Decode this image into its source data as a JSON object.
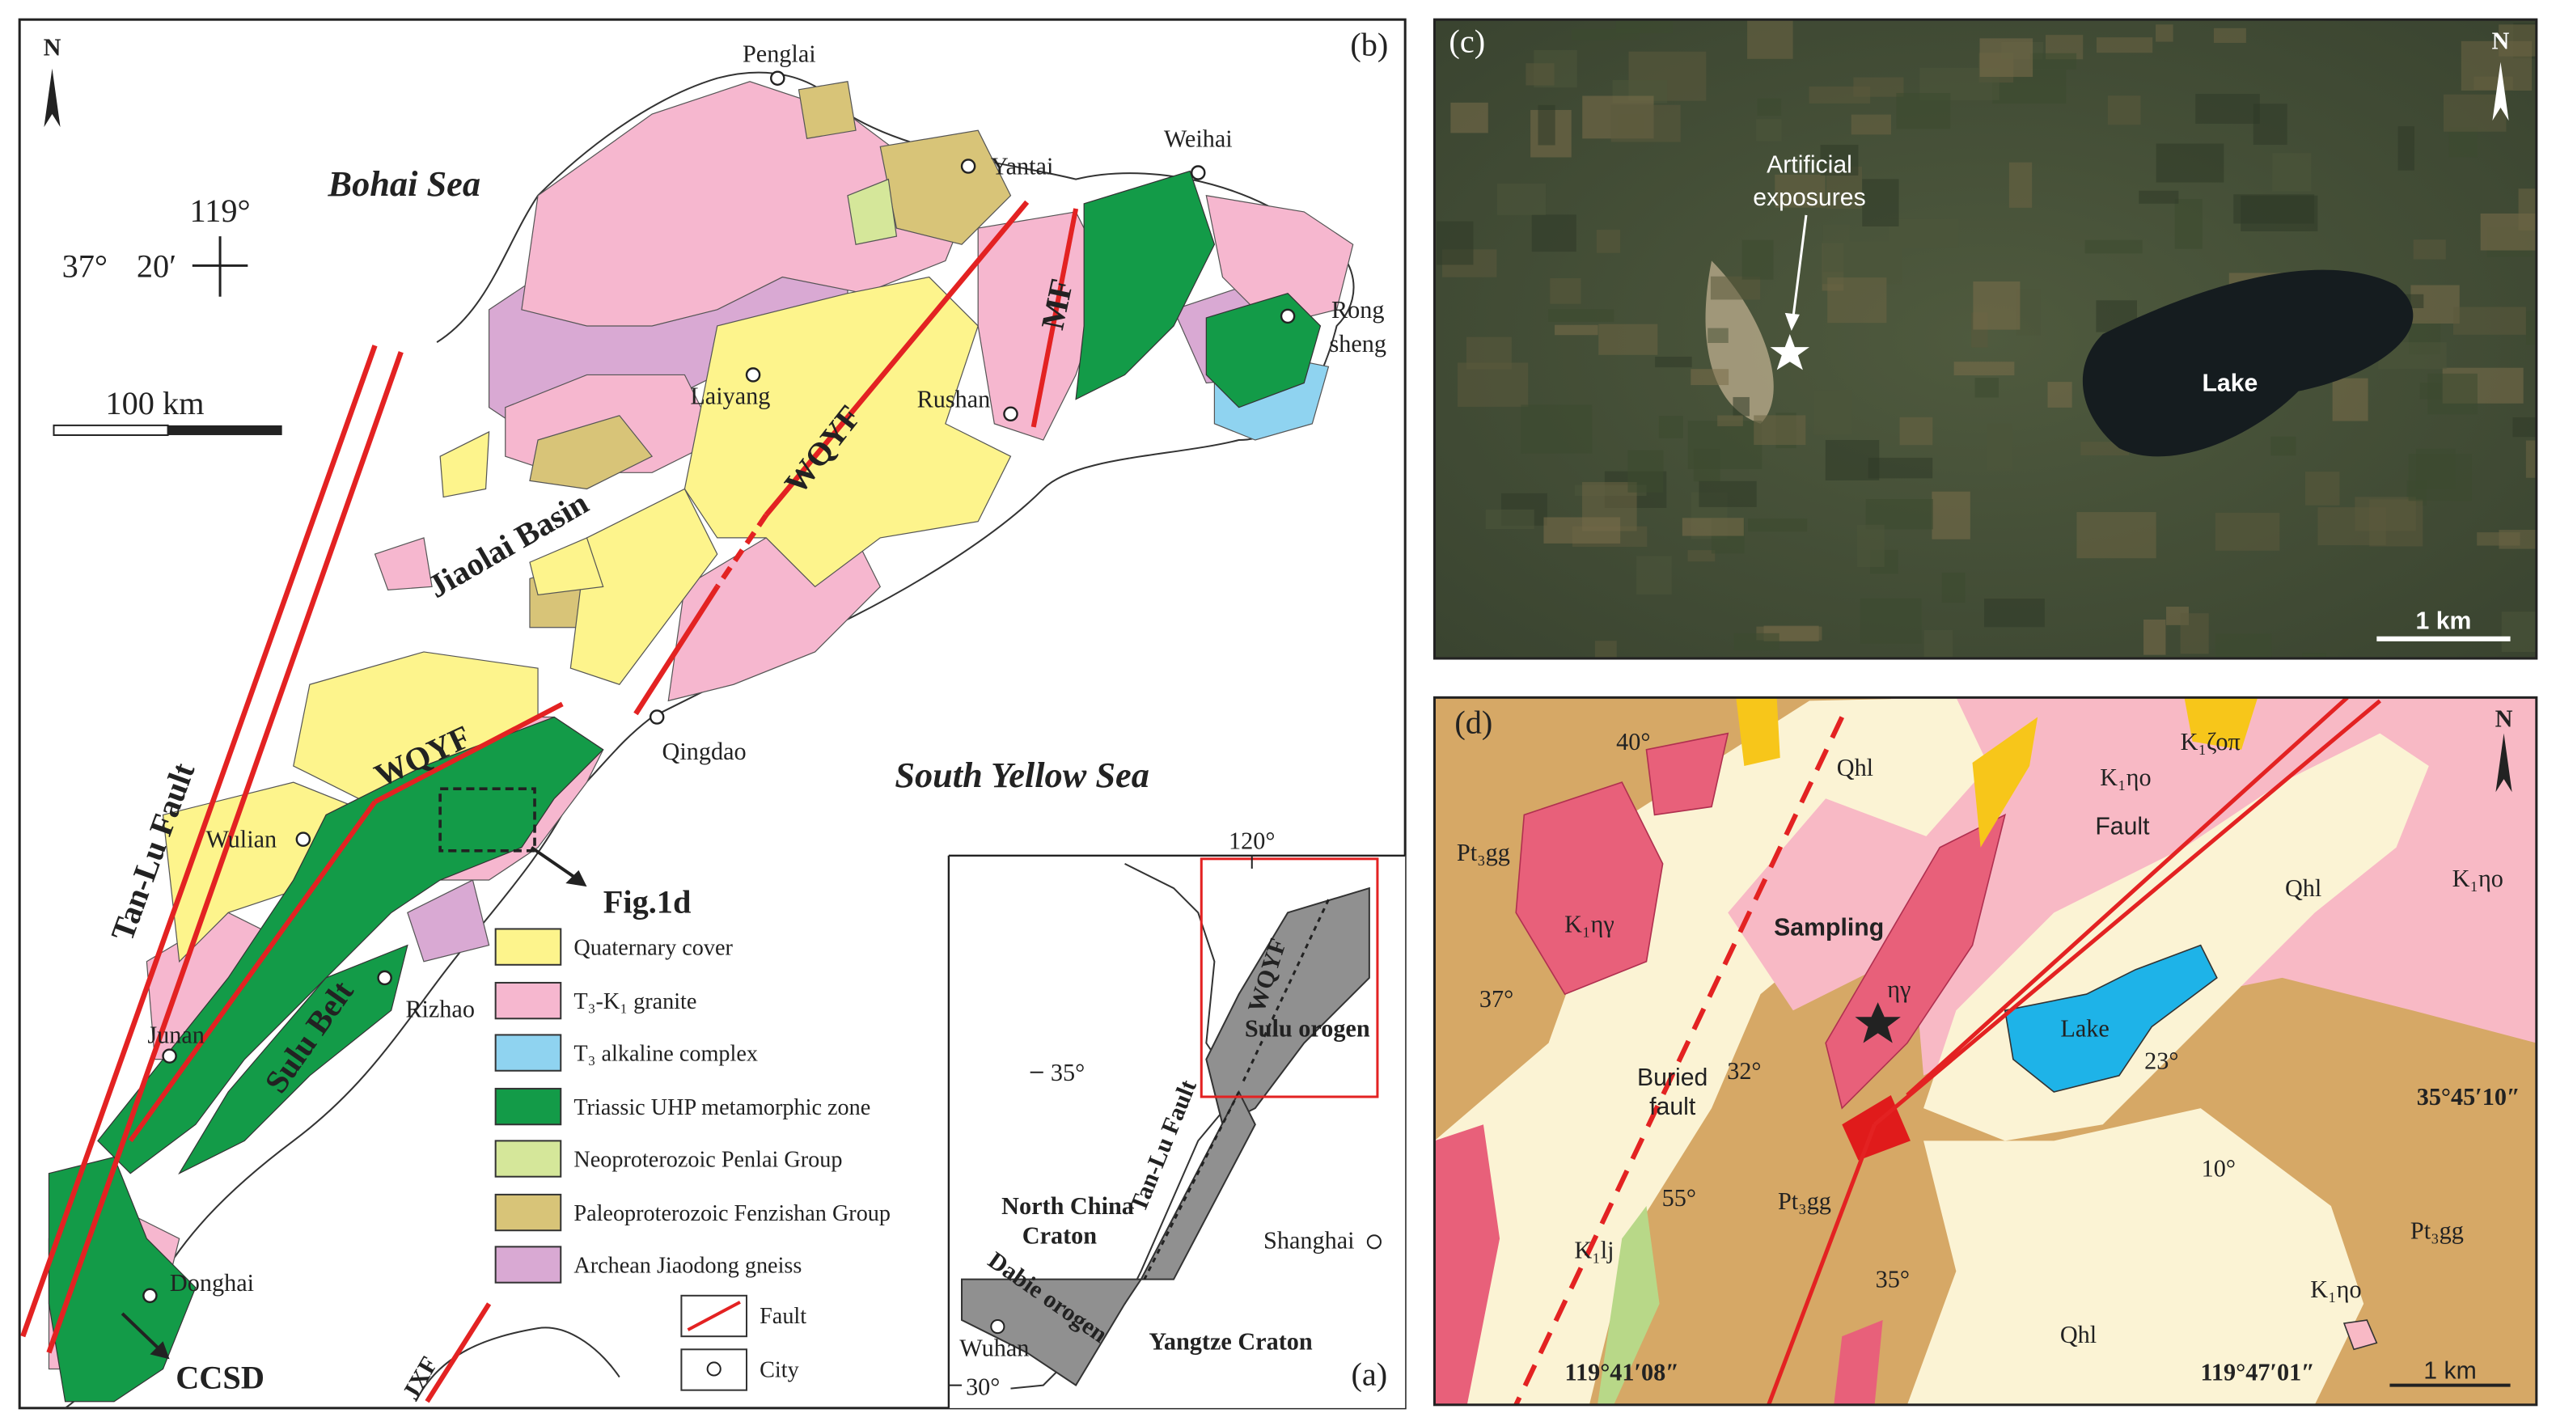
{
  "panel_b": {
    "label": "(b)",
    "north": "N",
    "seas": [
      "Bohai Sea",
      "South Yellow Sea"
    ],
    "coordinates": {
      "lon": "119°",
      "lat": "37°",
      "min": "20′"
    },
    "scale_bar": "100 km",
    "cities": [
      "Penglai",
      "Yantai",
      "Weihai",
      "Rong",
      "sheng",
      "Laiyang",
      "Rushan",
      "Qingdao",
      "Wulian",
      "Rizhao",
      "Junan",
      "Donghai"
    ],
    "structures": [
      "Jiaolai Basin",
      "Tan-Lu Fault",
      "WQYF",
      "WQYF",
      "MF",
      "Sulu Belt",
      "JXF"
    ],
    "annotations": [
      "Fig.1d",
      "CCSD"
    ],
    "legend": [
      "Quaternary cover",
      "T₃-K₁ granite",
      "T₃ alkaline complex",
      "Triassic UHP metamorphic zone",
      "Neoproterozoic Penlai Group",
      "Paleoproterozoic Fenzishan Group",
      "Archean Jiaodong gneiss",
      "Fault",
      "City"
    ]
  },
  "panel_a": {
    "label": "(a)",
    "texts": [
      "120°",
      "WQYF",
      "Sulu orogen",
      "35°",
      "Tan-Lu Fault",
      "North China",
      "Craton",
      "Shanghai",
      "Dabie orogen",
      "Wuhan",
      "Yangtze Craton",
      "30°"
    ]
  },
  "panel_c": {
    "label": "(c)",
    "north": "N",
    "annotation": [
      "Artificial",
      "exposures"
    ],
    "lake": "Lake",
    "scale_bar": "1 km"
  },
  "panel_d": {
    "label": "(d)",
    "north": "N",
    "units": [
      "Qhl",
      "K₁ηο",
      "K₁ζοπ",
      "Pt₃gg",
      "K₁ηγ",
      "Qhl",
      "K₁ηο",
      "ηγ",
      "Lake",
      "Pt₃gg",
      "K₁lj",
      "Qhl",
      "Pt₃gg",
      "K₁ηο"
    ],
    "dips": [
      "40°",
      "37°",
      "32°",
      "23°",
      "10°",
      "55°",
      "35°"
    ],
    "annotations": [
      "Fault",
      "Sampling",
      "Buried",
      "fault"
    ],
    "coordinates": [
      "35°45′10″",
      "119°41′08″",
      "119°47′01″"
    ],
    "scale_bar": "1 km"
  }
}
